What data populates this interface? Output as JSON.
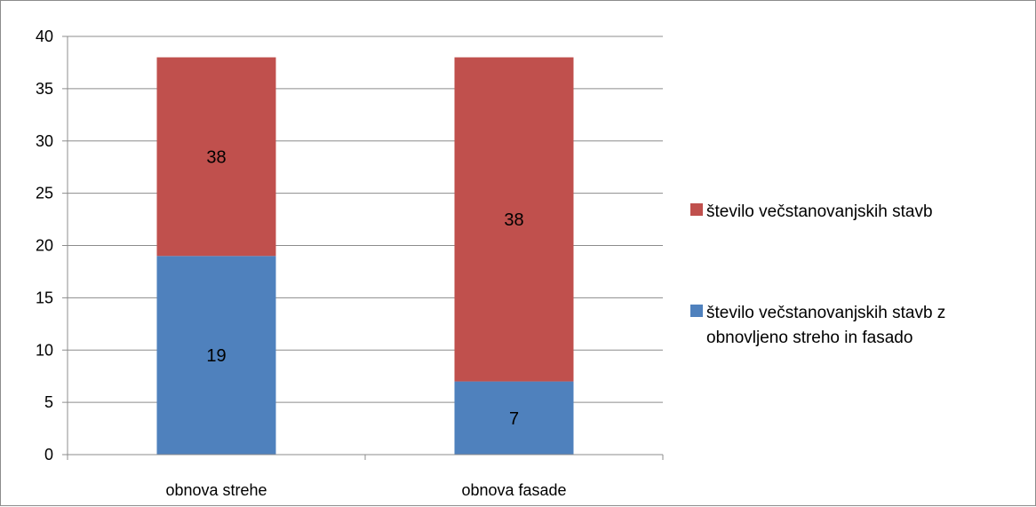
{
  "chart_data": {
    "type": "bar",
    "stacked": true,
    "categories": [
      "obnova strehe",
      "obnova fasade"
    ],
    "series": [
      {
        "name_lines": [
          "število večstanovanjskih stavb z",
          "obnovljeno streho in fasado"
        ],
        "values": [
          19,
          7
        ],
        "labels": [
          "19",
          "7"
        ],
        "color": "#4f81bd"
      },
      {
        "name_lines": [
          "število večstanovanjskih stavb"
        ],
        "values": [
          19,
          31
        ],
        "labels": [
          "38",
          "38"
        ],
        "color": "#c0504d"
      }
    ],
    "ylim": [
      0,
      40
    ],
    "yticks": [
      "0",
      "5",
      "10",
      "15",
      "20",
      "25",
      "30",
      "35",
      "40"
    ],
    "grid": true,
    "legend_position": "right"
  },
  "colors": {
    "grid": "#8c8c8c",
    "axis": "#8c8c8c"
  }
}
